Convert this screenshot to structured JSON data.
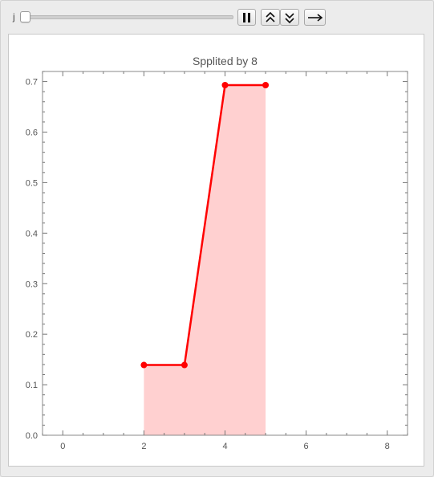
{
  "controls": {
    "variable_label": "j",
    "slider_value": 0.0,
    "buttons": [
      "pause-icon",
      "faster-icon",
      "slower-icon",
      "direction-icon"
    ]
  },
  "chart_data": {
    "type": "area",
    "title": "Spplited by 8",
    "xlabel": "",
    "ylabel": "",
    "xlim": [
      -0.5,
      8.5
    ],
    "ylim": [
      0,
      0.72
    ],
    "xticks": [
      "0",
      "2",
      "4",
      "6",
      "8"
    ],
    "yticks": [
      "0.0",
      "0.1",
      "0.2",
      "0.3",
      "0.4",
      "0.5",
      "0.6",
      "0.7"
    ],
    "series": [
      {
        "x": [
          2,
          3,
          4,
          5
        ],
        "y": [
          0.139,
          0.139,
          0.693,
          0.693
        ]
      }
    ],
    "line_color": "#ff0000",
    "fill_color": "#ffd0d0",
    "grid": false
  }
}
